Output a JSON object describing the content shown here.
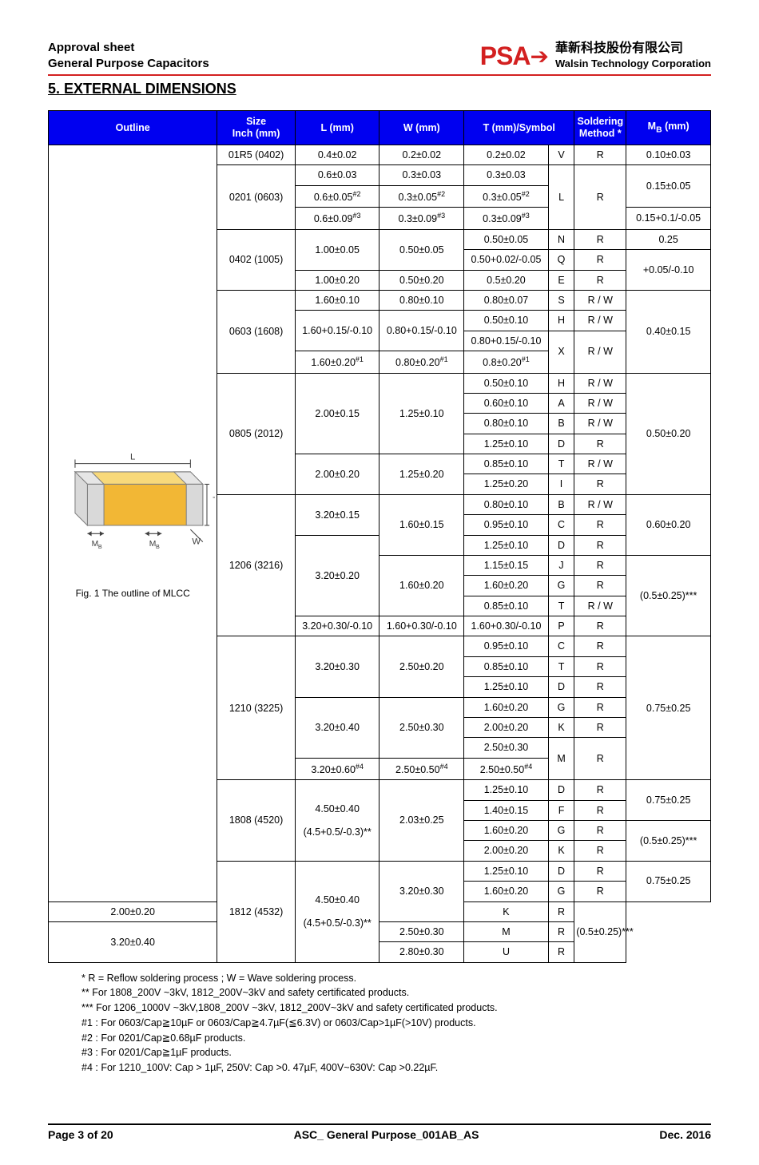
{
  "header": {
    "line1": "Approval sheet",
    "line2": "General Purpose Capacitors",
    "logo_color": "#d32020",
    "logo_letters": "PSA",
    "corp_cn": "華新科技股份有限公司",
    "corp_en": "Walsin Technology Corporation"
  },
  "section_title": "5. EXTERNAL DIMENSIONS",
  "footer": {
    "page": "Page 3 of 20",
    "doc": "ASC_ General Purpose_001AB_AS",
    "date": "Dec. 2016"
  },
  "table": {
    "header_bg": "#0000f0",
    "header_color": "#ffffff",
    "headers": {
      "outline": "Outline",
      "size": "Size\nInch (mm)",
      "l": "L (mm)",
      "w": "W (mm)",
      "t": "T (mm)/Symbol",
      "sold": "Soldering\nMethod *",
      "mb_html": "M<sub>B</sub> (mm)"
    },
    "fig_caption": "Fig. 1 The outline of MLCC",
    "mlcc": {
      "body_fill": "#f2b735",
      "top_fill": "#f8d97a",
      "side_fill": "#e6e6e6",
      "term_fill": "#d9d9d9",
      "stroke": "#808080",
      "label_color": "#404040"
    }
  },
  "sizes": {
    "s01R5": "01R5 (0402)",
    "s0201": "0201 (0603)",
    "s0402": "0402 (1005)",
    "s0603": "0603 (1608)",
    "s0805": "0805 (2012)",
    "s1206": "1206 (3216)",
    "s1210": "1210 (3225)",
    "s1808": "1808 (4520)",
    "s1812": "1812 (4532)"
  },
  "vals": {
    "r01R5": {
      "l": "0.4±0.02",
      "w": "0.2±0.02",
      "t": "0.2±0.02",
      "sym": "V",
      "sold": "R",
      "mb": "0.10±0.03"
    },
    "r0201_1": {
      "l": "0.6±0.03",
      "w": "0.3±0.03",
      "t": "0.3±0.03"
    },
    "r0201_2": {
      "l_html": "0.6±0.05<span class='sup'>#2</span>",
      "w_html": "0.3±0.05<span class='sup'>#2</span>",
      "t_html": "0.3±0.05<span class='sup'>#2</span>"
    },
    "r0201_3": {
      "l_html": "0.6±0.09<span class='sup'>#3</span>",
      "w_html": "0.3±0.09<span class='sup'>#3</span>",
      "t_html": "0.3±0.09<span class='sup'>#3</span>"
    },
    "r0201_sym": "L",
    "r0201_sold": "R",
    "r0201_mb1": "0.15±0.05",
    "r0201_mb2": "0.15+0.1/-0.05",
    "r0402_1": {
      "l": "1.00±0.05",
      "w": "0.50±0.05",
      "t1": "0.50±0.05",
      "sym1": "N",
      "sold1": "R",
      "t2": "0.50+0.02/-0.05",
      "sym2": "Q",
      "sold2": "R"
    },
    "r0402_2": {
      "l": "1.00±0.20",
      "w": "0.50±0.20",
      "t": "0.5±0.20",
      "sym": "E",
      "sold": "R"
    },
    "r0402_mb1": "0.25",
    "r0402_mb2": "+0.05/-0.10",
    "r0603_1": {
      "l": "1.60±0.10",
      "w": "0.80±0.10",
      "t": "0.80±0.07",
      "sym": "S",
      "sold": "R / W"
    },
    "r0603_2": {
      "l": "1.60+0.15/-0.10",
      "w": "0.80+0.15/-0.10",
      "t1": "0.50±0.10",
      "sym1": "H",
      "sold1": "R / W",
      "t2": "0.80+0.15/-0.10",
      "sym2": "X",
      "sold2": "R / W"
    },
    "r0603_3": {
      "l_html": "1.60±0.20<span class='sup'>#1</span>",
      "w_html": "0.80±0.20<span class='sup'>#1</span>",
      "t_html": "0.8±0.20<span class='sup'>#1</span>"
    },
    "r0603_mb": "0.40±0.15",
    "r0805_1": {
      "l": "2.00±0.15",
      "w": "1.25±0.10"
    },
    "r0805_2": {
      "l": "2.00±0.20",
      "w": "1.25±0.20"
    },
    "r0805_t": [
      {
        "t": "0.50±0.10",
        "sym": "H",
        "sold": "R / W"
      },
      {
        "t": "0.60±0.10",
        "sym": "A",
        "sold": "R / W"
      },
      {
        "t": "0.80±0.10",
        "sym": "B",
        "sold": "R / W"
      },
      {
        "t": "1.25±0.10",
        "sym": "D",
        "sold": "R"
      },
      {
        "t": "0.85±0.10",
        "sym": "T",
        "sold": "R / W"
      },
      {
        "t": "1.25±0.20",
        "sym": "I",
        "sold": "R"
      }
    ],
    "r0805_mb": "0.50±0.20",
    "r1206_1": {
      "l": "3.20±0.15",
      "w": "1.60±0.15"
    },
    "r1206_2": {
      "l": "3.20±0.20",
      "w": "1.60±0.20"
    },
    "r1206_3": {
      "l": "3.20+0.30/-0.10",
      "w": "1.60+0.30/-0.10",
      "t": "1.60+0.30/-0.10",
      "sym": "P",
      "sold": "R"
    },
    "r1206_t1": [
      {
        "t": "0.80±0.10",
        "sym": "B",
        "sold": "R / W"
      },
      {
        "t": "0.95±0.10",
        "sym": "C",
        "sold": "R"
      },
      {
        "t": "1.25±0.10",
        "sym": "D",
        "sold": "R"
      }
    ],
    "r1206_t2": [
      {
        "t": "1.15±0.15",
        "sym": "J",
        "sold": "R"
      },
      {
        "t": "1.60±0.20",
        "sym": "G",
        "sold": "R"
      },
      {
        "t": "0.85±0.10",
        "sym": "T",
        "sold": "R / W"
      }
    ],
    "r1206_mb1": "0.60±0.20",
    "r1206_mb2": "(0.5±0.25)***",
    "r1210_1": {
      "l": "3.20±0.30",
      "w": "2.50±0.20"
    },
    "r1210_2": {
      "l": "3.20±0.40",
      "w": "2.50±0.30"
    },
    "r1210_3": {
      "l_html": "3.20±0.60<span class='sup'>#4</span>",
      "w_html": "2.50±0.50<span class='sup'>#4</span>",
      "t_html": "2.50±0.50<span class='sup'>#4</span>"
    },
    "r1210_t1": [
      {
        "t": "0.95±0.10",
        "sym": "C",
        "sold": "R"
      },
      {
        "t": "0.85±0.10",
        "sym": "T",
        "sold": "R"
      },
      {
        "t": "1.25±0.10",
        "sym": "D",
        "sold": "R"
      }
    ],
    "r1210_t2": [
      {
        "t": "1.60±0.20",
        "sym": "G",
        "sold": "R"
      },
      {
        "t": "2.00±0.20",
        "sym": "K",
        "sold": "R"
      },
      {
        "t": "2.50±0.30"
      }
    ],
    "r1210_sym_m": "M",
    "r1210_sold_m": "R",
    "r1210_mb": "0.75±0.25",
    "r1808": {
      "l1": "4.50±0.40",
      "l2": "(4.5+0.5/-0.3)**",
      "w": "2.03±0.25"
    },
    "r1808_t": [
      {
        "t": "1.25±0.10",
        "sym": "D",
        "sold": "R"
      },
      {
        "t": "1.40±0.15",
        "sym": "F",
        "sold": "R"
      },
      {
        "t": "1.60±0.20",
        "sym": "G",
        "sold": "R"
      },
      {
        "t": "2.00±0.20",
        "sym": "K",
        "sold": "R"
      }
    ],
    "r1808_mb1": "0.75±0.25",
    "r1808_mb2": "(0.5±0.25)***",
    "r1812": {
      "l1": "4.50±0.40",
      "l2": "(4.5+0.5/-0.3)**",
      "w1": "3.20±0.30",
      "w2": "3.20±0.40"
    },
    "r1812_t": [
      {
        "t": "1.25±0.10",
        "sym": "D",
        "sold": "R"
      },
      {
        "t": "1.60±0.20",
        "sym": "G",
        "sold": "R"
      },
      {
        "t": "2.00±0.20",
        "sym": "K",
        "sold": "R"
      },
      {
        "t": "2.50±0.30",
        "sym": "M",
        "sold": "R"
      },
      {
        "t": "2.80±0.30",
        "sym": "U",
        "sold": "R"
      }
    ],
    "r1812_mb1": "0.75±0.25",
    "r1812_mb2": "(0.5±0.25)***"
  },
  "notes": [
    "* R = Reflow soldering process ; W = Wave soldering process.",
    "** For 1808_200V ~3kV, 1812_200V~3kV and safety certificated products.",
    "*** For 1206_1000V ~3kV,1808_200V ~3kV, 1812_200V~3kV and safety certificated products.",
    "#1 : For 0603/Cap≧10µF or 0603/Cap≧4.7µF(≦6.3V) or 0603/Cap>1µF(>10V) products.",
    "#2 : For 0201/Cap≧0.68µF products.",
    "#3 : For 0201/Cap≧1µF products.",
    "#4 : For 1210_100V: Cap > 1µF, 250V: Cap >0. 47µF, 400V~630V: Cap >0.22µF."
  ]
}
